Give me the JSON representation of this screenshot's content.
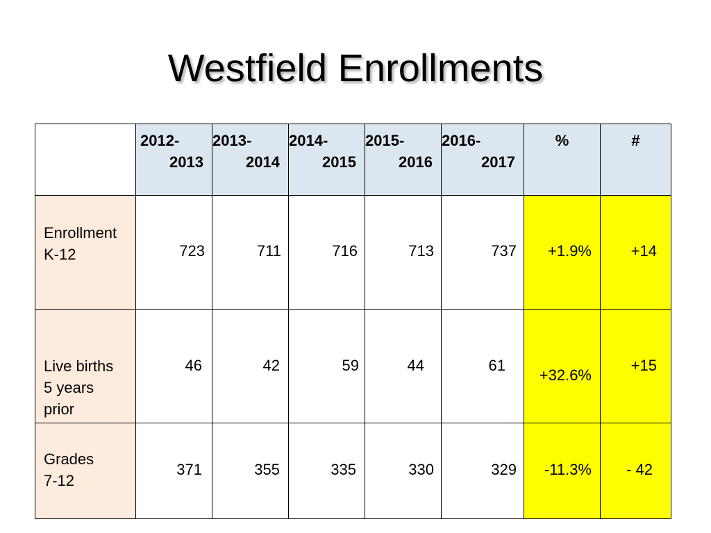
{
  "title": "Westfield Enrollments",
  "table": {
    "columns": [
      {
        "top": "2012-",
        "bottom": "2013"
      },
      {
        "top": "2013-",
        "bottom": "2014"
      },
      {
        "top": "2014-",
        "bottom": "2015"
      },
      {
        "top": "2015-",
        "bottom": "2016"
      },
      {
        "top": "2016-",
        "bottom": "2017"
      }
    ],
    "pct_header": "%",
    "count_header": "#",
    "rows": [
      {
        "label_lines": [
          "Enrollment",
          "K-12"
        ],
        "values": [
          "723",
          "711",
          "716",
          "713",
          "737"
        ],
        "pct": "+1.9%",
        "count": "+14"
      },
      {
        "label_lines": [
          "Live births",
          "5 years",
          "prior"
        ],
        "values": [
          "46",
          "42",
          "59",
          "44",
          "61"
        ],
        "pct": "+32.6%",
        "count": "+15"
      },
      {
        "label_lines": [
          "Grades",
          "7-12"
        ],
        "values": [
          "371",
          "355",
          "335",
          "330",
          "329"
        ],
        "pct": "-11.3%",
        "count": "- 42"
      }
    ],
    "colors": {
      "header_fill": "#dce6f0",
      "label_fill": "#fdebdd",
      "highlight_fill": "#ffff00"
    }
  }
}
